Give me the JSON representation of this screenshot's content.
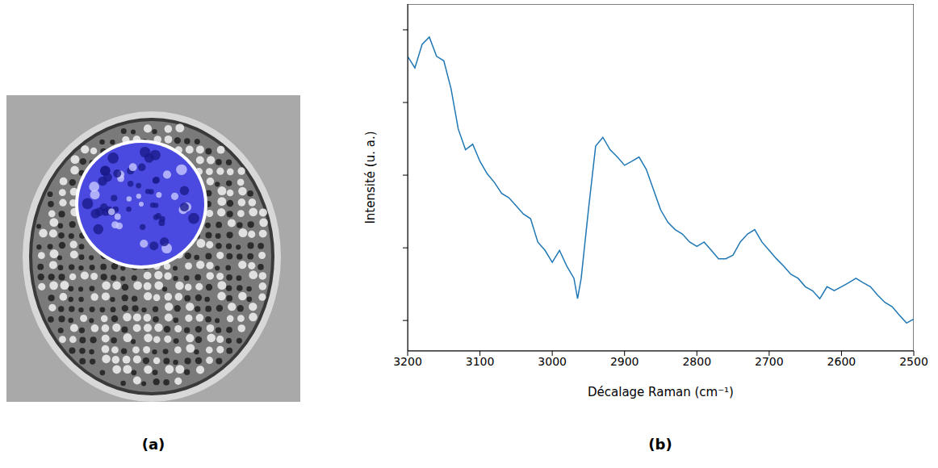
{
  "image_panel": {
    "label": "(a)"
  },
  "chart_data": {
    "type": "line",
    "panel_label": "(b)",
    "xlabel": "Décalage Raman (cm⁻¹)",
    "ylabel": "Intensité (u. a.)",
    "x": [
      3200,
      3190,
      3180,
      3170,
      3160,
      3150,
      3140,
      3130,
      3120,
      3110,
      3100,
      3090,
      3080,
      3070,
      3060,
      3050,
      3040,
      3030,
      3020,
      3010,
      3000,
      2990,
      2980,
      2970,
      2965,
      2960,
      2950,
      2940,
      2930,
      2920,
      2910,
      2900,
      2890,
      2880,
      2870,
      2860,
      2850,
      2840,
      2830,
      2820,
      2810,
      2800,
      2790,
      2780,
      2770,
      2760,
      2750,
      2740,
      2730,
      2720,
      2710,
      2700,
      2690,
      2680,
      2670,
      2660,
      2650,
      2640,
      2630,
      2620,
      2610,
      2600,
      2590,
      2580,
      2570,
      2560,
      2550,
      2540,
      2530,
      2520,
      2510,
      2500
    ],
    "values": [
      82.7,
      79.5,
      86,
      88,
      82.7,
      81.5,
      73.8,
      62.7,
      57,
      58.5,
      53.8,
      50.4,
      48,
      45,
      43.8,
      41.6,
      39.3,
      38,
      31.6,
      29.3,
      26,
      29.3,
      25,
      21.6,
      16,
      21.6,
      40.4,
      58,
      60.4,
      57,
      55,
      52.7,
      53.8,
      55,
      51.6,
      46,
      40.4,
      37,
      35,
      33.8,
      31.6,
      30.4,
      31.6,
      29.3,
      27,
      27,
      28,
      31.6,
      33.8,
      35,
      31.6,
      29.3,
      27,
      25,
      22.7,
      21.6,
      19.3,
      18.2,
      16,
      19.3,
      18.2,
      19.3,
      20.4,
      21.6,
      20.4,
      19.3,
      17,
      15,
      13.8,
      11.5,
      9.3,
      10.4
    ],
    "color": "#1f77b4",
    "xlim": [
      3200,
      2500
    ],
    "ylim": [
      1.6,
      97.1
    ],
    "xticks": [
      3200,
      3100,
      3000,
      2900,
      2800,
      2700,
      2600,
      2500
    ],
    "yticks": [
      10,
      30,
      50,
      70,
      90
    ],
    "tick_labels": "x",
    "grid": false
  }
}
